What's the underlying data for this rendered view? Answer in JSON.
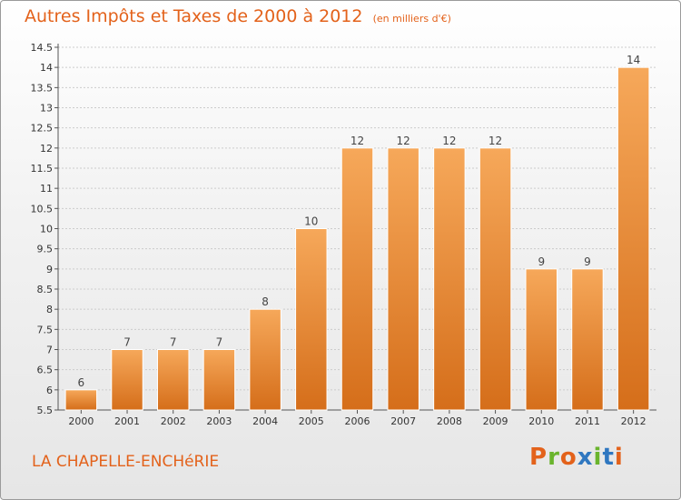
{
  "header": {
    "title": "Autres Impôts et Taxes de 2000 à 2012",
    "unit": "(en milliers d'€)"
  },
  "footer": {
    "commune": "LA CHAPELLE-ENCHéRIE",
    "logo_text": "Proxiti"
  },
  "colors": {
    "title": "#e3621b",
    "bar_light": "#f6a85a",
    "bar_dark": "#d56e1a",
    "grid": "#cccccc",
    "logo_letters": [
      "#e3621b",
      "#6ab42d",
      "#e3621b",
      "#2f77c0",
      "#6ab42d",
      "#2f77c0",
      "#e3621b"
    ]
  },
  "chart_data": {
    "type": "bar",
    "title": "Autres Impôts et Taxes de 2000 à 2012",
    "subtitle": "(en milliers d'€)",
    "categories": [
      "2000",
      "2001",
      "2002",
      "2003",
      "2004",
      "2005",
      "2006",
      "2007",
      "2008",
      "2009",
      "2010",
      "2011",
      "2012"
    ],
    "values": [
      6,
      7,
      7,
      7,
      8,
      10,
      12,
      12,
      12,
      12,
      9,
      9,
      14
    ],
    "data_labels": [
      "6",
      "7",
      "7",
      "7",
      "8",
      "10",
      "12",
      "12",
      "12",
      "12",
      "9",
      "9",
      "14"
    ],
    "ylim": [
      5.5,
      14.5
    ],
    "yticks": [
      "5.5",
      "6",
      "6.5",
      "7",
      "7.5",
      "8",
      "8.5",
      "9",
      "9.5",
      "10",
      "10.5",
      "11",
      "11.5",
      "12",
      "12.5",
      "13",
      "13.5",
      "14",
      "14.5"
    ],
    "grid": true,
    "xlabel": "",
    "ylabel": ""
  }
}
